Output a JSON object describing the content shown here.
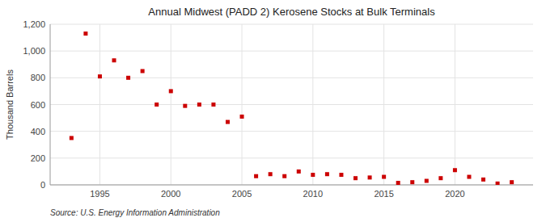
{
  "chart_data": {
    "type": "scatter",
    "title": "Annual Midwest (PADD 2) Kerosene Stocks at Bulk Terminals",
    "y_label": "Thousand Barrels",
    "annotations": [
      "Source: U.S. Energy Information Administration"
    ],
    "x": [
      1993,
      1994,
      1995,
      1996,
      1997,
      1998,
      1999,
      2000,
      2001,
      2002,
      2003,
      2004,
      2005,
      2006,
      2007,
      2008,
      2009,
      2010,
      2011,
      2012,
      2013,
      2014,
      2015,
      2016,
      2017,
      2018,
      2019,
      2020,
      2021,
      2022,
      2023,
      2024
    ],
    "values": [
      350,
      1130,
      810,
      930,
      800,
      850,
      600,
      700,
      590,
      600,
      600,
      470,
      510,
      65,
      80,
      65,
      100,
      75,
      80,
      75,
      50,
      55,
      60,
      15,
      20,
      30,
      50,
      110,
      60,
      40,
      10,
      20
    ],
    "color": "#cc0000",
    "marker": "square",
    "xlim": [
      1991.5,
      2025.5
    ],
    "xticks": [
      1995,
      2000,
      2005,
      2010,
      2015,
      2020
    ],
    "ylim": [
      0,
      1200
    ],
    "yticks": [
      0,
      200,
      400,
      600,
      800,
      {
        "value": 1000,
        "label": "1,000"
      },
      {
        "value": 1200,
        "label": "1,200"
      }
    ],
    "grid": true
  }
}
